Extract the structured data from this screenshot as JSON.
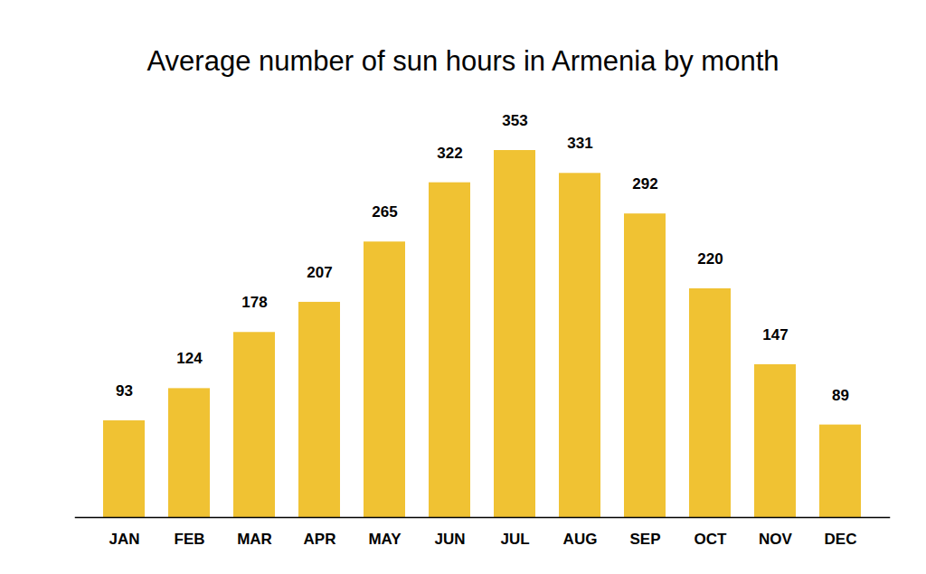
{
  "chart_data": {
    "type": "bar",
    "title": "Average number of sun hours in Armenia by month",
    "categories": [
      "JAN",
      "FEB",
      "MAR",
      "APR",
      "MAY",
      "JUN",
      "JUL",
      "AUG",
      "SEP",
      "OCT",
      "NOV",
      "DEC"
    ],
    "values": [
      93,
      124,
      178,
      207,
      265,
      322,
      353,
      331,
      292,
      220,
      147,
      89
    ],
    "color": "#f0c233",
    "data_labels": true,
    "tick_labels": "x",
    "grid": false
  }
}
